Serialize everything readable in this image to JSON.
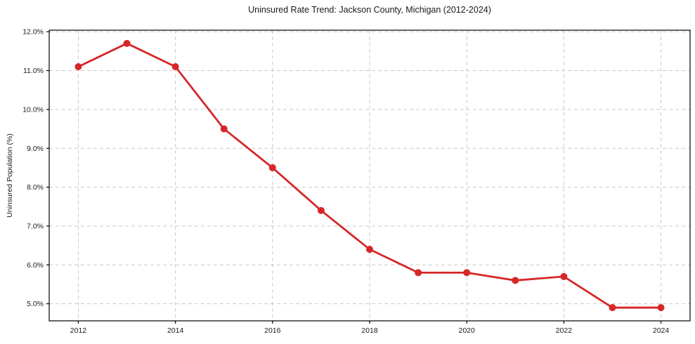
{
  "chart_data": {
    "type": "line",
    "title": "Uninsured Rate Trend: Jackson County, Michigan (2012-2024)",
    "xlabel": "",
    "ylabel": "Uninsured Population (%)",
    "x": [
      2012,
      2013,
      2014,
      2015,
      2016,
      2017,
      2018,
      2019,
      2020,
      2021,
      2022,
      2023,
      2024
    ],
    "values": [
      11.1,
      11.7,
      11.1,
      9.5,
      8.5,
      7.4,
      6.4,
      5.8,
      5.8,
      5.6,
      5.7,
      4.9,
      4.9
    ],
    "x_ticks": [
      2012,
      2014,
      2016,
      2018,
      2020,
      2022,
      2024
    ],
    "y_ticks": [
      5.0,
      6.0,
      7.0,
      8.0,
      9.0,
      10.0,
      11.0,
      12.0
    ],
    "y_tick_suffix": "%",
    "xlim": [
      2011.4,
      2024.6
    ],
    "ylim": [
      4.56,
      12.04
    ],
    "grid": true,
    "legend": "none",
    "line_color": "#d62728",
    "marker_color": "#d62728",
    "grid_color": "#c9c9c9",
    "axis_color": "#000000",
    "text_color": "#1a1a1a",
    "background": "#ffffff"
  }
}
